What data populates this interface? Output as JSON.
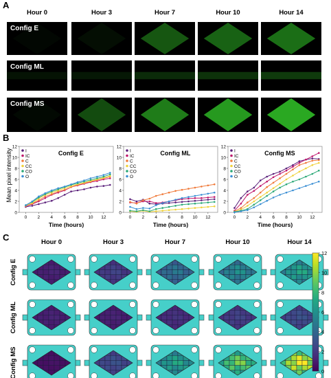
{
  "panel_a": {
    "letter": "A",
    "hours": [
      "Hour 0",
      "Hour 3",
      "Hour 7",
      "Hour 10",
      "Hour 14"
    ],
    "rows": [
      {
        "label": "Config E",
        "brightness": [
          0.02,
          0.1,
          0.55,
          0.6,
          0.65
        ]
      },
      {
        "label": "Config ML",
        "brightness": [
          0.05,
          0.1,
          0.25,
          0.3,
          0.35
        ]
      },
      {
        "label": "Config MS",
        "brightness": [
          0.05,
          0.5,
          0.7,
          0.8,
          0.85
        ]
      }
    ],
    "colors": {
      "fluor": "#3fbf3a",
      "background": "#000000"
    }
  },
  "panel_b": {
    "letter": "B",
    "ylabel": "Mean pixel intensity",
    "xlabel": "Time (hours)"
  },
  "panel_c": {
    "letter": "C",
    "hours": [
      "Hour 0",
      "Hour 3",
      "Hour 7",
      "Hour 10",
      "Hour 14"
    ],
    "rows": [
      "Config E",
      "Config ML",
      "Config MS"
    ],
    "colorbar_ticks": [
      "12",
      "10",
      "8",
      "6",
      "4",
      "2",
      "0"
    ],
    "colormap": "viridis",
    "device_color": "#46cfc9",
    "mean_levels": [
      [
        1,
        2,
        4,
        5,
        6
      ],
      [
        1,
        1,
        1.5,
        2,
        2.5
      ],
      [
        0.5,
        2.5,
        6,
        8,
        10
      ]
    ]
  },
  "chart_data": [
    {
      "type": "line",
      "title": "Config E",
      "xlabel": "Time (hours)",
      "ylabel": "Mean pixel intensity",
      "xlim": [
        -1,
        13.5
      ],
      "ylim": [
        0,
        12
      ],
      "xticks": [
        0,
        2,
        4,
        6,
        8,
        10,
        12
      ],
      "yticks": [
        0,
        2,
        4,
        6,
        8,
        10,
        12
      ],
      "legend": "top-left",
      "x": [
        0,
        1,
        2,
        3,
        4,
        5,
        6,
        7,
        8,
        9,
        10,
        11,
        12,
        13
      ],
      "series": [
        {
          "name": "I",
          "color": "#5a1f7a",
          "values": [
            1.0,
            1.2,
            1.5,
            1.8,
            2.1,
            2.6,
            3.2,
            3.8,
            4.0,
            4.2,
            4.5,
            4.7,
            4.8,
            5.0
          ]
        },
        {
          "name": "IC",
          "color": "#c0176c",
          "values": [
            1.1,
            1.5,
            2.0,
            2.6,
            3.2,
            3.6,
            4.0,
            4.6,
            4.9,
            5.2,
            5.5,
            5.7,
            6.0,
            6.2
          ]
        },
        {
          "name": "C",
          "color": "#f07a3a",
          "values": [
            1.2,
            1.6,
            2.2,
            2.9,
            3.3,
            3.8,
            4.1,
            4.6,
            5.0,
            5.3,
            5.6,
            5.9,
            6.2,
            6.5
          ]
        },
        {
          "name": "CC",
          "color": "#f0d23c",
          "values": [
            1.2,
            1.7,
            2.5,
            3.2,
            3.6,
            4.0,
            4.4,
            4.8,
            5.1,
            5.4,
            5.7,
            6.0,
            6.3,
            6.6
          ]
        },
        {
          "name": "CO",
          "color": "#2aa876",
          "values": [
            1.3,
            1.9,
            2.7,
            3.3,
            3.8,
            4.2,
            4.6,
            5.0,
            5.3,
            5.6,
            5.9,
            6.2,
            6.5,
            6.9
          ]
        },
        {
          "name": "O",
          "color": "#3b8fd4",
          "values": [
            1.3,
            2.0,
            2.9,
            3.5,
            4.0,
            4.4,
            4.7,
            5.1,
            5.5,
            5.8,
            6.2,
            6.5,
            6.8,
            7.2
          ]
        }
      ]
    },
    {
      "type": "line",
      "title": "Config ML",
      "xlabel": "Time (hours)",
      "ylabel": "",
      "xlim": [
        -1,
        13.5
      ],
      "ylim": [
        0,
        12
      ],
      "xticks": [
        0,
        2,
        4,
        6,
        8,
        10,
        12
      ],
      "yticks": [
        0,
        2,
        4,
        6,
        8,
        10,
        12
      ],
      "legend": "top-left",
      "x": [
        0,
        1,
        2,
        3,
        4,
        5,
        6,
        7,
        8,
        9,
        10,
        11,
        12,
        13
      ],
      "series": [
        {
          "name": "I",
          "color": "#5a1f7a",
          "values": [
            2.4,
            2.0,
            2.3,
            1.6,
            1.5,
            1.6,
            1.7,
            1.8,
            1.9,
            2.0,
            2.1,
            2.2,
            2.3,
            2.4
          ]
        },
        {
          "name": "IC",
          "color": "#c0176c",
          "values": [
            1.8,
            1.7,
            2.0,
            2.0,
            1.7,
            1.8,
            2.0,
            2.2,
            2.4,
            2.5,
            2.6,
            2.6,
            2.7,
            2.8
          ]
        },
        {
          "name": "C",
          "color": "#f07a3a",
          "values": [
            1.9,
            1.6,
            2.2,
            2.5,
            3.0,
            3.3,
            3.6,
            3.9,
            4.1,
            4.3,
            4.5,
            4.7,
            4.9,
            5.1
          ]
        },
        {
          "name": "CC",
          "color": "#f0d23c",
          "values": [
            0.2,
            0.1,
            0.3,
            0.1,
            0.2,
            0.3,
            0.4,
            0.5,
            0.6,
            0.7,
            0.8,
            0.9,
            1.0,
            1.1
          ]
        },
        {
          "name": "CO",
          "color": "#2aa876",
          "values": [
            0.3,
            0.2,
            0.4,
            0.2,
            0.6,
            0.8,
            1.0,
            1.2,
            1.4,
            1.5,
            1.6,
            1.7,
            1.8,
            1.9
          ]
        },
        {
          "name": "O",
          "color": "#3b8fd4",
          "values": [
            1.0,
            0.6,
            0.8,
            0.7,
            1.3,
            1.7,
            2.0,
            2.3,
            2.6,
            2.8,
            3.0,
            3.2,
            3.4,
            3.6
          ]
        }
      ]
    },
    {
      "type": "line",
      "title": "Config MS",
      "xlabel": "Time (hours)",
      "ylabel": "",
      "xlim": [
        -1,
        13.5
      ],
      "ylim": [
        0,
        12
      ],
      "xticks": [
        0,
        2,
        4,
        6,
        8,
        10,
        12
      ],
      "yticks": [
        0,
        2,
        4,
        6,
        8,
        10,
        12
      ],
      "legend": "top-left",
      "x": [
        0,
        1,
        2,
        3,
        4,
        5,
        6,
        7,
        8,
        9,
        10,
        11,
        12,
        13
      ],
      "series": [
        {
          "name": "I",
          "color": "#5a1f7a",
          "values": [
            0.8,
            2.6,
            3.8,
            4.5,
            5.8,
            6.5,
            7.0,
            7.4,
            8.0,
            8.6,
            9.3,
            9.6,
            9.8,
            9.7
          ]
        },
        {
          "name": "IC",
          "color": "#c0176c",
          "values": [
            0.3,
            1.6,
            3.2,
            3.9,
            4.8,
            5.6,
            6.4,
            7.0,
            7.6,
            8.3,
            9.0,
            9.6,
            10.2,
            10.8
          ]
        },
        {
          "name": "C",
          "color": "#f07a3a",
          "values": [
            0.2,
            0.8,
            1.8,
            2.6,
            3.6,
            4.6,
            5.4,
            6.2,
            7.0,
            7.8,
            8.6,
            9.0,
            9.4,
            9.5
          ]
        },
        {
          "name": "CC",
          "color": "#f0d23c",
          "values": [
            0.1,
            0.5,
            1.2,
            2.0,
            2.8,
            3.6,
            4.4,
            5.2,
            6.0,
            6.7,
            7.4,
            8.0,
            8.6,
            9.0
          ]
        },
        {
          "name": "CO",
          "color": "#2aa876",
          "values": [
            0.1,
            0.3,
            0.6,
            1.4,
            2.2,
            3.0,
            3.8,
            4.5,
            5.1,
            5.6,
            6.0,
            6.5,
            7.0,
            7.6
          ]
        },
        {
          "name": "O",
          "color": "#3b8fd4",
          "values": [
            0.0,
            0.2,
            0.4,
            0.9,
            1.5,
            2.1,
            2.7,
            3.2,
            3.6,
            4.0,
            4.4,
            4.8,
            5.2,
            5.6
          ]
        }
      ]
    }
  ]
}
